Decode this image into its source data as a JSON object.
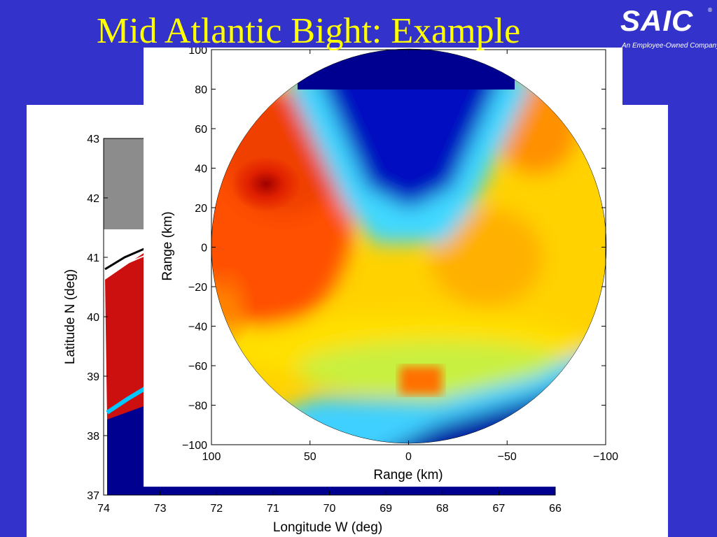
{
  "slide": {
    "title": "Mid Atlantic Bight: Example",
    "logo_text": "SAIC",
    "logo_tagline": "An Employee-Owned Company",
    "logo_registered": "®"
  },
  "chart_data": [
    {
      "type": "heatmap",
      "title": "",
      "xlabel": "Longitude W (deg)",
      "ylabel": "Latitude N (deg)",
      "xlim": [
        74,
        66
      ],
      "ylim": [
        37,
        43
      ],
      "x_ticks": [
        "74",
        "73",
        "72",
        "71",
        "70",
        "69",
        "68",
        "67",
        "66"
      ],
      "y_ticks": [
        "37",
        "38",
        "39",
        "40",
        "41",
        "42",
        "43"
      ]
    },
    {
      "type": "heatmap",
      "title": "",
      "xlabel": "Range (km)",
      "ylabel": "Range (km)",
      "xlim": [
        100,
        -100
      ],
      "ylim": [
        -100,
        100
      ],
      "x_ticks": [
        "100",
        "50",
        "0",
        "−50",
        "−100"
      ],
      "y_ticks": [
        "−100",
        "−80",
        "−60",
        "−40",
        "−20",
        "0",
        "20",
        "40",
        "60",
        "80",
        "100"
      ],
      "colormap": "jet",
      "colors": {
        "low": "#800000",
        "mid_low": "#ff0000",
        "mid": "#ffff00",
        "mid_high": "#00ffff",
        "high": "#000080"
      }
    }
  ]
}
